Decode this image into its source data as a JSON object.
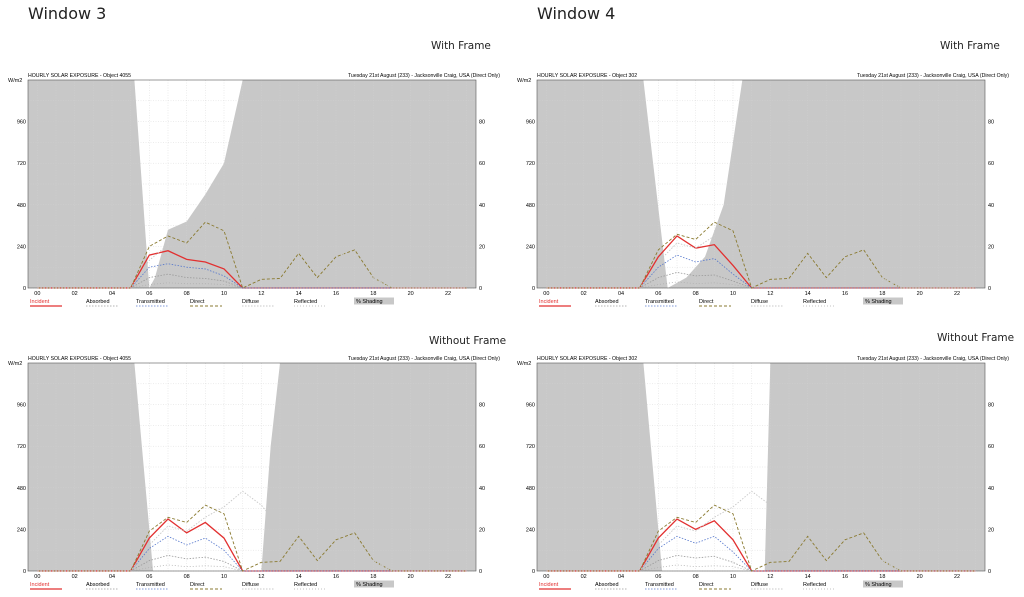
{
  "headings": {
    "left": "Window 3",
    "right": "Window 4"
  },
  "subheadings": {
    "with_frame": "With Frame",
    "without_frame": "Without Frame"
  },
  "chart_common": {
    "title": "HOURLY SOLAR EXPOSURE",
    "date_location": "Tuesday 21st August (233) - Jacksonville Craig, USA (Direct Only)",
    "y_unit": "W/m2",
    "x_ticks": [
      "00",
      "02",
      "04",
      "06",
      "08",
      "10",
      "12",
      "14",
      "16",
      "18",
      "20",
      "22"
    ],
    "y_ticks": [
      0,
      240,
      480,
      720,
      960
    ],
    "y2_ticks": [
      0,
      20,
      40,
      60,
      80
    ],
    "legend": [
      "Incident",
      "Absorbed",
      "Transmitted",
      "Direct",
      "Diffuse",
      "Reflected",
      "% Shading"
    ],
    "colors": {
      "incident": "#e23030",
      "absorbed": "#9a9a9a",
      "transmitted": "#5577cc",
      "direct": "#8a7a30",
      "diffuse": "#c8c8c8",
      "reflected": "#b0b0b0",
      "shading": "#c8c8c8"
    }
  },
  "chart_data": [
    {
      "type": "line",
      "panel": "Window 3 - With Frame",
      "object": "Object 4055",
      "title": "HOURLY SOLAR EXPOSURE - Object 4055",
      "xlabel": "",
      "ylabel": "W/m2",
      "xlim": [
        -0.5,
        23.5
      ],
      "ylim": [
        0,
        1200
      ],
      "y2lim": [
        0,
        100
      ],
      "grid": true,
      "legend_position": "bottom",
      "shading_edges": [
        [
          5.2,
          0
        ],
        [
          6.0,
          0
        ],
        [
          6.3,
          0.05
        ],
        [
          7.0,
          0.28
        ],
        [
          8.0,
          0.32
        ],
        [
          9.0,
          0.45
        ],
        [
          10.0,
          0.6
        ],
        [
          11.0,
          1.0
        ],
        [
          12.0,
          1.0
        ]
      ],
      "x": [
        0,
        1,
        2,
        3,
        4,
        5,
        6,
        7,
        8,
        9,
        10,
        11,
        12,
        13,
        14,
        15,
        16,
        17,
        18,
        19,
        20,
        21,
        22,
        23
      ],
      "series": [
        {
          "name": "Incident",
          "values": [
            0,
            0,
            0,
            0,
            0,
            0,
            190,
            215,
            165,
            150,
            110,
            0,
            0,
            0,
            0,
            0,
            0,
            0,
            0,
            0,
            0,
            0,
            0,
            0
          ]
        },
        {
          "name": "Absorbed",
          "values": [
            0,
            0,
            0,
            0,
            0,
            0,
            60,
            80,
            60,
            55,
            40,
            0,
            0,
            0,
            0,
            0,
            0,
            0,
            0,
            0,
            0,
            0,
            0,
            0
          ]
        },
        {
          "name": "Transmitted",
          "values": [
            0,
            0,
            0,
            0,
            0,
            0,
            120,
            140,
            120,
            110,
            70,
            0,
            0,
            0,
            0,
            0,
            0,
            0,
            0,
            0,
            0,
            0,
            0,
            0
          ]
        },
        {
          "name": "Direct",
          "values": [
            0,
            0,
            0,
            0,
            0,
            0,
            240,
            300,
            260,
            380,
            330,
            0,
            50,
            55,
            200,
            60,
            180,
            220,
            60,
            0,
            0,
            0,
            0,
            0
          ]
        },
        {
          "name": "Diffuse",
          "values": [
            0,
            0,
            0,
            0,
            0,
            0,
            160,
            250,
            230,
            300,
            360,
            460,
            380,
            250,
            270,
            260,
            220,
            160,
            60,
            0,
            0,
            0,
            0,
            0
          ]
        },
        {
          "name": "Reflected",
          "values": [
            0,
            0,
            0,
            0,
            0,
            0,
            20,
            30,
            25,
            25,
            20,
            0,
            0,
            0,
            0,
            0,
            0,
            0,
            0,
            0,
            0,
            0,
            0,
            0
          ]
        }
      ]
    },
    {
      "type": "line",
      "panel": "Window 4 - With Frame",
      "object": "Object 302",
      "title": "HOURLY SOLAR EXPOSURE - Object 302",
      "xlabel": "",
      "ylabel": "W/m2",
      "xlim": [
        -0.5,
        23.5
      ],
      "ylim": [
        0,
        1200
      ],
      "y2lim": [
        0,
        100
      ],
      "grid": true,
      "legend_position": "bottom",
      "shading_edges": [
        [
          5.2,
          0
        ],
        [
          6.5,
          0
        ],
        [
          7.5,
          0.05
        ],
        [
          8.5,
          0.15
        ],
        [
          9.5,
          0.4
        ],
        [
          10.5,
          1.0
        ],
        [
          11.0,
          1.0
        ]
      ],
      "x": [
        0,
        1,
        2,
        3,
        4,
        5,
        6,
        7,
        8,
        9,
        10,
        11,
        12,
        13,
        14,
        15,
        16,
        17,
        18,
        19,
        20,
        21,
        22,
        23
      ],
      "series": [
        {
          "name": "Incident",
          "values": [
            0,
            0,
            0,
            0,
            0,
            0,
            180,
            300,
            230,
            250,
            130,
            0,
            0,
            0,
            0,
            0,
            0,
            0,
            0,
            0,
            0,
            0,
            0,
            0
          ]
        },
        {
          "name": "Absorbed",
          "values": [
            0,
            0,
            0,
            0,
            0,
            0,
            60,
            90,
            70,
            75,
            40,
            0,
            0,
            0,
            0,
            0,
            0,
            0,
            0,
            0,
            0,
            0,
            0,
            0
          ]
        },
        {
          "name": "Transmitted",
          "values": [
            0,
            0,
            0,
            0,
            0,
            0,
            120,
            190,
            150,
            170,
            80,
            0,
            0,
            0,
            0,
            0,
            0,
            0,
            0,
            0,
            0,
            0,
            0,
            0
          ]
        },
        {
          "name": "Direct",
          "values": [
            0,
            0,
            0,
            0,
            0,
            0,
            220,
            310,
            280,
            380,
            330,
            0,
            50,
            55,
            200,
            60,
            180,
            220,
            60,
            0,
            0,
            0,
            0,
            0
          ]
        },
        {
          "name": "Diffuse",
          "values": [
            0,
            0,
            0,
            0,
            0,
            0,
            150,
            260,
            230,
            300,
            370,
            440,
            380,
            250,
            270,
            260,
            220,
            160,
            60,
            0,
            0,
            0,
            0,
            0
          ]
        },
        {
          "name": "Reflected",
          "values": [
            0,
            0,
            0,
            0,
            0,
            0,
            20,
            35,
            25,
            30,
            20,
            0,
            0,
            0,
            0,
            0,
            0,
            0,
            0,
            0,
            0,
            0,
            0,
            0
          ]
        }
      ]
    },
    {
      "type": "line",
      "panel": "Window 3 - Without Frame",
      "object": "Object 4055",
      "title": "HOURLY SOLAR EXPOSURE - Object 4055",
      "xlabel": "",
      "ylabel": "W/m2",
      "xlim": [
        -0.5,
        23.5
      ],
      "ylim": [
        0,
        1200
      ],
      "y2lim": [
        0,
        100
      ],
      "grid": true,
      "legend_position": "bottom",
      "shading_edges": [
        [
          5.2,
          0
        ],
        [
          6.2,
          0
        ],
        [
          12.0,
          0
        ],
        [
          12.5,
          0.6
        ],
        [
          13.0,
          1.0
        ]
      ],
      "x": [
        0,
        1,
        2,
        3,
        4,
        5,
        6,
        7,
        8,
        9,
        10,
        11,
        12,
        13,
        14,
        15,
        16,
        17,
        18,
        19,
        20,
        21,
        22,
        23
      ],
      "series": [
        {
          "name": "Incident",
          "values": [
            0,
            0,
            0,
            0,
            0,
            0,
            190,
            300,
            220,
            280,
            190,
            0,
            0,
            0,
            0,
            0,
            0,
            0,
            0,
            0,
            0,
            0,
            0,
            0
          ]
        },
        {
          "name": "Absorbed",
          "values": [
            0,
            0,
            0,
            0,
            0,
            0,
            60,
            90,
            70,
            80,
            55,
            0,
            0,
            0,
            0,
            0,
            0,
            0,
            0,
            0,
            0,
            0,
            0,
            0
          ]
        },
        {
          "name": "Transmitted",
          "values": [
            0,
            0,
            0,
            0,
            0,
            0,
            130,
            200,
            150,
            190,
            120,
            0,
            0,
            0,
            0,
            0,
            0,
            0,
            0,
            0,
            0,
            0,
            0,
            0
          ]
        },
        {
          "name": "Direct",
          "values": [
            0,
            0,
            0,
            0,
            0,
            0,
            230,
            310,
            280,
            380,
            330,
            0,
            50,
            55,
            200,
            60,
            180,
            220,
            60,
            0,
            0,
            0,
            0,
            0
          ]
        },
        {
          "name": "Diffuse",
          "values": [
            0,
            0,
            0,
            0,
            0,
            0,
            150,
            260,
            230,
            310,
            370,
            460,
            380,
            250,
            270,
            260,
            220,
            160,
            60,
            0,
            0,
            0,
            0,
            0
          ]
        },
        {
          "name": "Reflected",
          "values": [
            0,
            0,
            0,
            0,
            0,
            0,
            20,
            35,
            25,
            30,
            25,
            0,
            0,
            0,
            0,
            0,
            0,
            0,
            0,
            0,
            0,
            0,
            0,
            0
          ]
        }
      ]
    },
    {
      "type": "line",
      "panel": "Window 4 - Without Frame",
      "object": "Object 302",
      "title": "HOURLY SOLAR EXPOSURE - Object 302",
      "xlabel": "",
      "ylabel": "W/m2",
      "xlim": [
        -0.5,
        23.5
      ],
      "ylim": [
        0,
        1200
      ],
      "y2lim": [
        0,
        100
      ],
      "grid": true,
      "legend_position": "bottom",
      "shading_edges": [
        [
          5.2,
          0
        ],
        [
          6.2,
          0
        ],
        [
          11.7,
          0
        ],
        [
          12.0,
          1.0
        ]
      ],
      "x": [
        0,
        1,
        2,
        3,
        4,
        5,
        6,
        7,
        8,
        9,
        10,
        11,
        12,
        13,
        14,
        15,
        16,
        17,
        18,
        19,
        20,
        21,
        22,
        23
      ],
      "series": [
        {
          "name": "Incident",
          "values": [
            0,
            0,
            0,
            0,
            0,
            0,
            190,
            300,
            240,
            290,
            180,
            0,
            0,
            0,
            0,
            0,
            0,
            0,
            0,
            0,
            0,
            0,
            0,
            0
          ]
        },
        {
          "name": "Absorbed",
          "values": [
            0,
            0,
            0,
            0,
            0,
            0,
            60,
            90,
            75,
            85,
            50,
            0,
            0,
            0,
            0,
            0,
            0,
            0,
            0,
            0,
            0,
            0,
            0,
            0
          ]
        },
        {
          "name": "Transmitted",
          "values": [
            0,
            0,
            0,
            0,
            0,
            0,
            130,
            200,
            160,
            200,
            110,
            0,
            0,
            0,
            0,
            0,
            0,
            0,
            0,
            0,
            0,
            0,
            0,
            0
          ]
        },
        {
          "name": "Direct",
          "values": [
            0,
            0,
            0,
            0,
            0,
            0,
            230,
            310,
            280,
            380,
            330,
            0,
            50,
            55,
            200,
            60,
            180,
            220,
            60,
            0,
            0,
            0,
            0,
            0
          ]
        },
        {
          "name": "Diffuse",
          "values": [
            0,
            0,
            0,
            0,
            0,
            0,
            150,
            260,
            230,
            310,
            370,
            460,
            380,
            250,
            270,
            260,
            220,
            160,
            60,
            0,
            0,
            0,
            0,
            0
          ]
        },
        {
          "name": "Reflected",
          "values": [
            0,
            0,
            0,
            0,
            0,
            0,
            20,
            35,
            25,
            30,
            25,
            0,
            0,
            0,
            0,
            0,
            0,
            0,
            0,
            0,
            0,
            0,
            0,
            0
          ]
        }
      ]
    }
  ]
}
